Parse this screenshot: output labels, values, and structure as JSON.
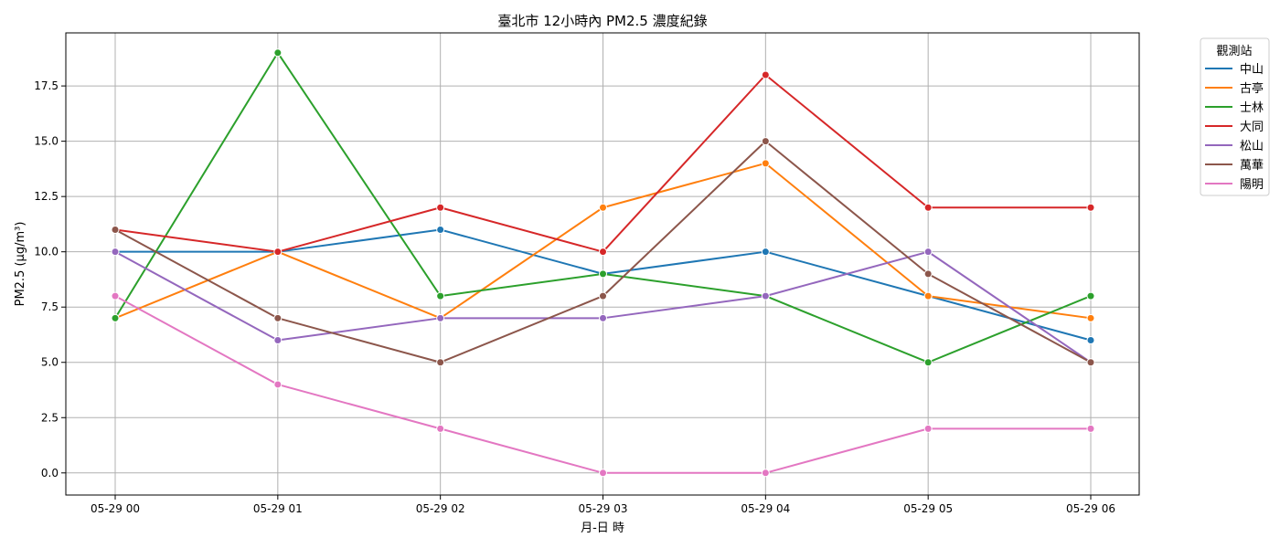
{
  "chart_data": {
    "type": "line",
    "title": "臺北市 12小時內 PM2.5 濃度紀錄",
    "xlabel": "月-日 時",
    "ylabel": "PM2.5 (μg/m³)",
    "x": [
      "05-29 00",
      "05-29 01",
      "05-29 02",
      "05-29 03",
      "05-29 04",
      "05-29 05",
      "05-29 06"
    ],
    "ylim": [
      -1,
      19.9
    ],
    "yticks": [
      "0.0",
      "2.5",
      "5.0",
      "7.5",
      "10.0",
      "12.5",
      "15.0",
      "17.5"
    ],
    "grid": true,
    "legend": {
      "title": "觀測站",
      "placement": "outside-top-right"
    },
    "series": [
      {
        "name": "中山",
        "color": "#1f77b4",
        "values": [
          10,
          10,
          11,
          9,
          10,
          8,
          6
        ]
      },
      {
        "name": "古亭",
        "color": "#ff7f0e",
        "values": [
          7,
          10,
          7,
          12,
          14,
          8,
          7
        ]
      },
      {
        "name": "士林",
        "color": "#2ca02c",
        "values": [
          7,
          19,
          8,
          9,
          8,
          5,
          8
        ]
      },
      {
        "name": "大同",
        "color": "#d62728",
        "values": [
          11,
          10,
          12,
          10,
          18,
          12,
          12
        ]
      },
      {
        "name": "松山",
        "color": "#9467bd",
        "values": [
          10,
          6,
          7,
          7,
          8,
          10,
          5
        ]
      },
      {
        "name": "萬華",
        "color": "#8c564b",
        "values": [
          11,
          7,
          5,
          8,
          15,
          9,
          5
        ]
      },
      {
        "name": "陽明",
        "color": "#e377c2",
        "values": [
          8,
          4,
          2,
          0,
          0,
          2,
          2
        ]
      }
    ]
  }
}
